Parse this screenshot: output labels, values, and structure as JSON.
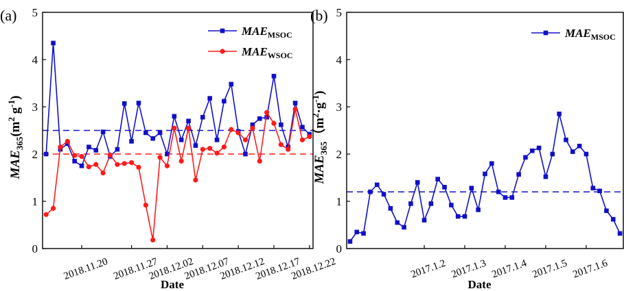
{
  "chart_data": [
    {
      "type": "line",
      "panel_label": "(a)",
      "xlabel": "Date",
      "ylabel": [
        {
          "text": "MAE",
          "style": "italic"
        },
        {
          "text": "365",
          "script": "sub"
        },
        {
          "text": "(m"
        },
        {
          "text": "2",
          "script": "super"
        },
        {
          "text": " g"
        },
        {
          "text": "-1",
          "script": "super"
        },
        {
          "text": ")"
        }
      ],
      "categories": [
        null,
        null,
        null,
        null,
        null,
        "2018.11.20",
        null,
        null,
        null,
        null,
        null,
        null,
        "2018.11.27",
        null,
        null,
        null,
        null,
        "2018.12.02",
        null,
        null,
        null,
        null,
        "2018.12.07",
        null,
        null,
        null,
        null,
        "2018.12.12",
        null,
        null,
        null,
        null,
        "2018.12.17",
        null,
        null,
        null,
        null,
        "2018.12.22"
      ],
      "ylim": [
        0,
        5
      ],
      "yticks": [
        0,
        1,
        2,
        3,
        4,
        5
      ],
      "legend": "upper right",
      "series": [
        {
          "name": "MAE",
          "name_sub": "MSOC",
          "color": "#1010c8",
          "marker": "square",
          "values": [
            2.0,
            4.35,
            2.1,
            2.22,
            1.85,
            1.75,
            2.15,
            2.08,
            2.47,
            1.95,
            2.1,
            3.07,
            2.27,
            3.08,
            2.45,
            2.33,
            2.45,
            2.0,
            2.8,
            2.3,
            2.7,
            2.18,
            2.78,
            3.18,
            2.3,
            3.12,
            3.48,
            2.48,
            2.0,
            2.62,
            2.75,
            2.78,
            3.65,
            2.62,
            2.15,
            3.08,
            2.57,
            2.42
          ]
        },
        {
          "name": "MAE",
          "name_sub": "WSOC",
          "color": "#ff1a1a",
          "marker": "circle",
          "values": [
            0.72,
            0.85,
            2.15,
            2.27,
            1.97,
            1.95,
            1.73,
            1.78,
            1.6,
            1.98,
            1.78,
            1.8,
            1.82,
            1.72,
            0.92,
            0.18,
            1.93,
            1.75,
            2.55,
            1.85,
            2.55,
            1.45,
            2.1,
            2.12,
            2.02,
            2.15,
            2.52,
            2.45,
            2.3,
            2.55,
            1.85,
            2.88,
            2.65,
            2.2,
            2.1,
            2.95,
            2.3,
            2.37
          ]
        }
      ],
      "hlines": [
        {
          "value": 2.5,
          "color": "#1010c8"
        },
        {
          "value": 2.0,
          "color": "#ff1a1a"
        }
      ]
    },
    {
      "type": "line",
      "panel_label": "(b)",
      "xlabel": "Date",
      "ylabel": [
        {
          "text": "MAE",
          "style": "italic"
        },
        {
          "text": "365",
          "script": "sub"
        },
        {
          "text": "（m"
        },
        {
          "text": "2",
          "script": "super"
        },
        {
          "text": "·g"
        },
        {
          "text": "-1",
          "script": "super"
        },
        {
          "text": ")"
        }
      ],
      "categories": [
        null,
        null,
        null,
        null,
        null,
        null,
        null,
        null,
        null,
        null,
        null,
        "2017.1.2",
        null,
        null,
        null,
        null,
        null,
        "2017.1.3",
        null,
        null,
        null,
        null,
        null,
        "2017.1.4",
        null,
        null,
        null,
        null,
        null,
        "2017.1.5",
        null,
        null,
        null,
        null,
        null,
        "2017.1.6",
        null,
        null,
        null,
        null,
        null
      ],
      "ylim": [
        0,
        5
      ],
      "yticks": [
        0,
        1,
        2,
        3,
        4,
        5
      ],
      "legend": "upper right",
      "series": [
        {
          "name": "MAE",
          "name_sub": "MSOC",
          "color": "#1010c8",
          "marker": "square",
          "values": [
            0.15,
            0.35,
            0.32,
            1.2,
            1.35,
            1.15,
            0.85,
            0.55,
            0.45,
            0.95,
            1.4,
            0.6,
            0.95,
            1.47,
            1.3,
            0.92,
            0.68,
            0.68,
            1.28,
            0.82,
            1.58,
            1.8,
            1.2,
            1.08,
            1.08,
            1.57,
            1.93,
            2.07,
            2.13,
            1.52,
            2.0,
            2.85,
            2.3,
            2.05,
            2.17,
            2.0,
            1.28,
            1.22,
            0.8,
            0.62,
            0.32
          ]
        }
      ],
      "hlines": [
        {
          "value": 1.2,
          "color": "#1010c8"
        }
      ]
    }
  ]
}
